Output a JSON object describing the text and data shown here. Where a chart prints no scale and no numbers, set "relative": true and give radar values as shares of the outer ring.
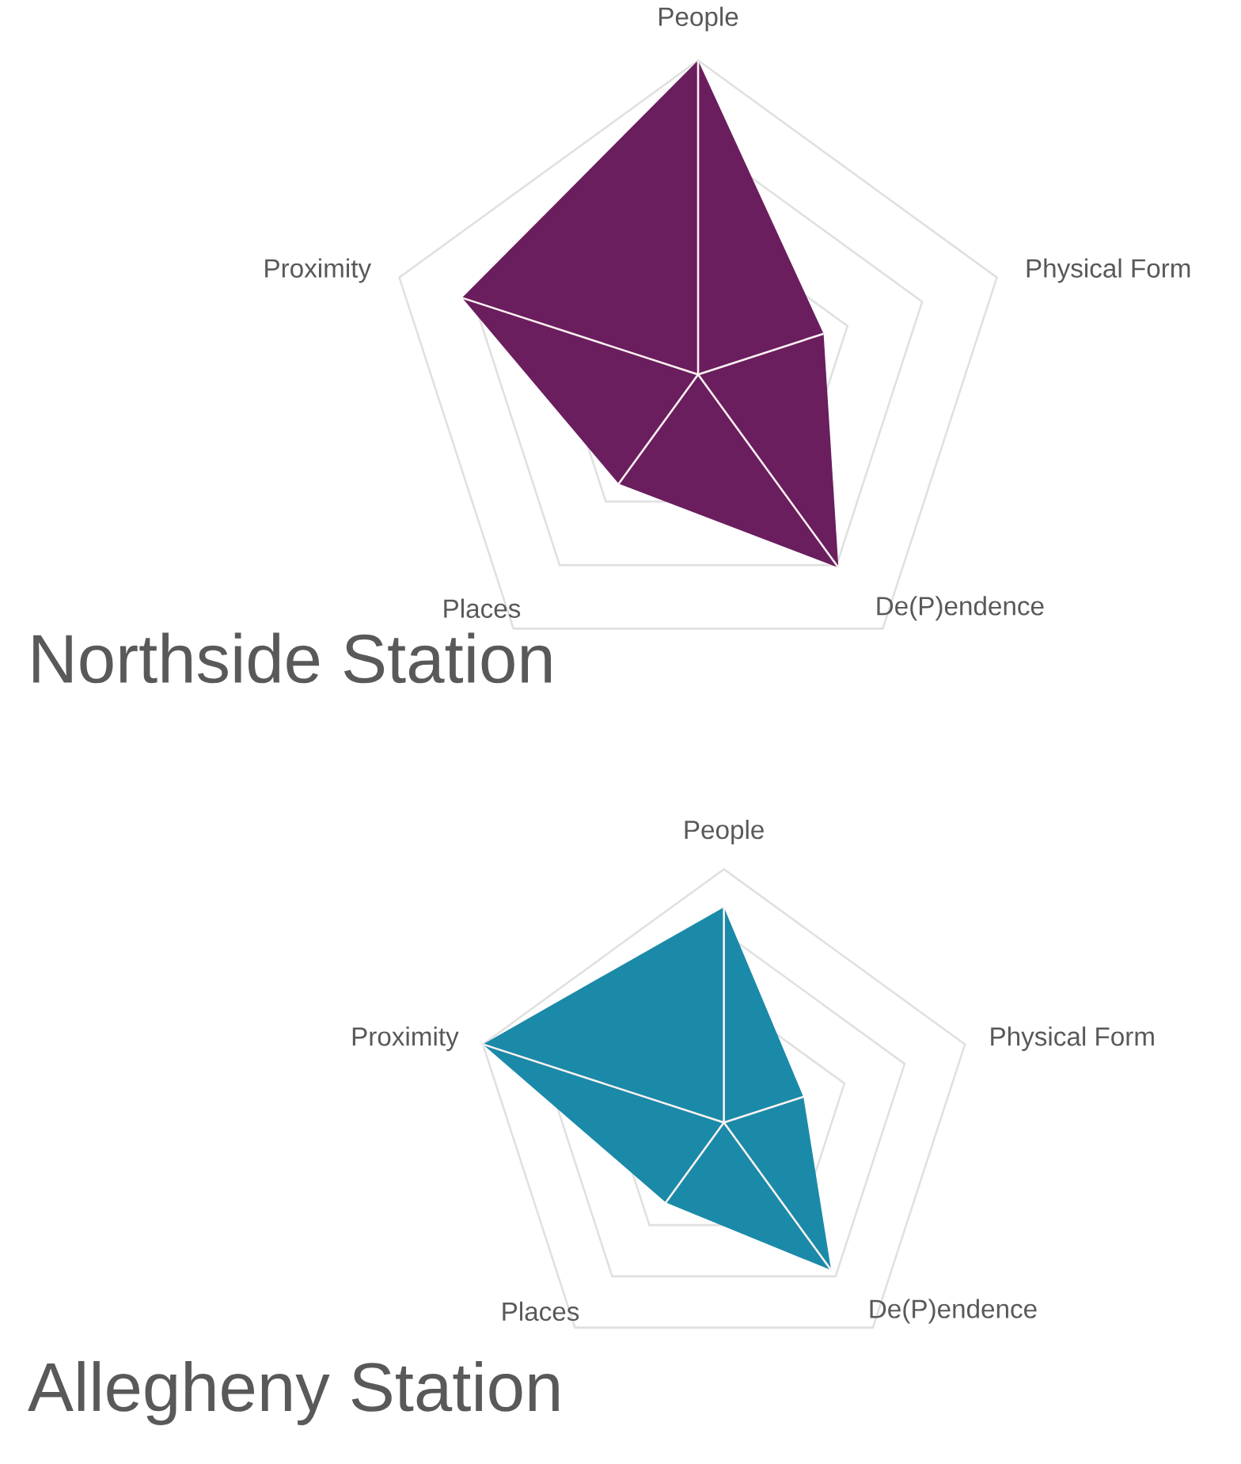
{
  "chart_data": [
    {
      "type": "radar",
      "title": "Northside Station",
      "categories": [
        "People",
        "Physical Form",
        "De(P)endence",
        "Places",
        "Proximity"
      ],
      "relative": true,
      "grid": true,
      "series": [
        {
          "color": "#6a1e5e",
          "values": [
            1.0,
            0.42,
            0.76,
            0.43,
            0.79
          ]
        }
      ]
    },
    {
      "type": "radar",
      "title": "Allegheny Station",
      "categories": [
        "People",
        "Physical Form",
        "De(P)endence",
        "Places",
        "Proximity"
      ],
      "relative": true,
      "grid": true,
      "series": [
        {
          "color": "#1a8aa8",
          "values": [
            0.85,
            0.33,
            0.72,
            0.39,
            1.0
          ]
        }
      ]
    }
  ]
}
